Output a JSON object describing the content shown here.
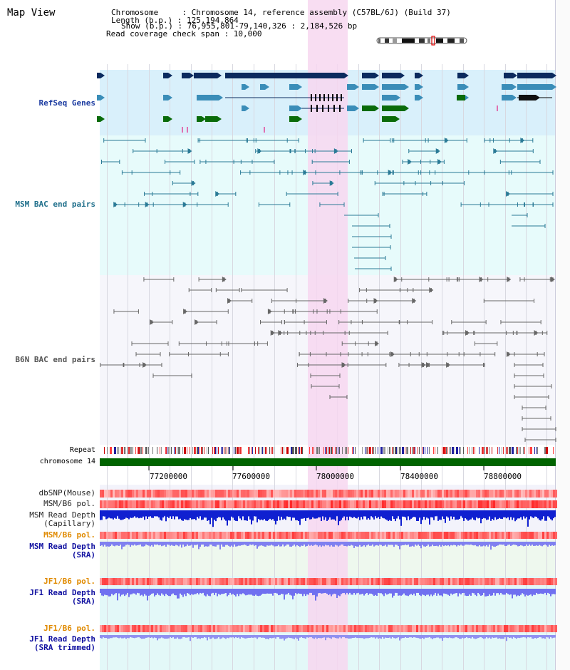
{
  "title": "Map View",
  "header": {
    "line1": "Chromosome     : Chromosome 14, reference assembly (C57BL/6J) (Build 37)",
    "line2": "Length (b.p.) : 125,194,864",
    "line3": "Show (b.p.) : 76,955,801-79,140,326 : 2,184,526 bp",
    "line4": "Read coverage check span : 10,000"
  },
  "tracks": {
    "refseq": "RefSeq Genes",
    "msm_bac": "MSM BAC end pairs",
    "b6n_bac": "B6N BAC end pairs",
    "repeat": "Repeat",
    "chromosome": "chromosome 14",
    "dbsnp": "dbSNP(Mouse)",
    "msm_b6_pol_1": "MSM/B6 pol.",
    "msm_depth_cap_1": "MSM Read Depth",
    "msm_depth_cap_2": "(Capillary)",
    "msm_b6_pol_2": "MSM/B6 pol.",
    "msm_depth_sra_1": "MSM Read Depth",
    "msm_depth_sra_2": "(SRA)",
    "jf1_b6_pol_1": "JF1/B6 pol.",
    "jf1_depth_sra_1": "JF1 Read Depth",
    "jf1_depth_sra_2": "(SRA)",
    "jf1_b6_pol_2": "JF1/B6 pol.",
    "jf1_depth_trim_1": "JF1 Read Depth",
    "jf1_depth_trim_2": "(SRA trimmed)"
  },
  "axis": {
    "ticks": [
      "77200000",
      "77600000",
      "78000000",
      "78400000",
      "78800000"
    ]
  },
  "colors": {
    "refseq_label": "#1a3aa0",
    "msm_label": "#1f6f8b",
    "b6n_label": "#555555",
    "orange_label": "#e08a00",
    "blue_label": "#1010a0",
    "highlight": "#f7d7f0",
    "chromosome": "#006400"
  }
}
